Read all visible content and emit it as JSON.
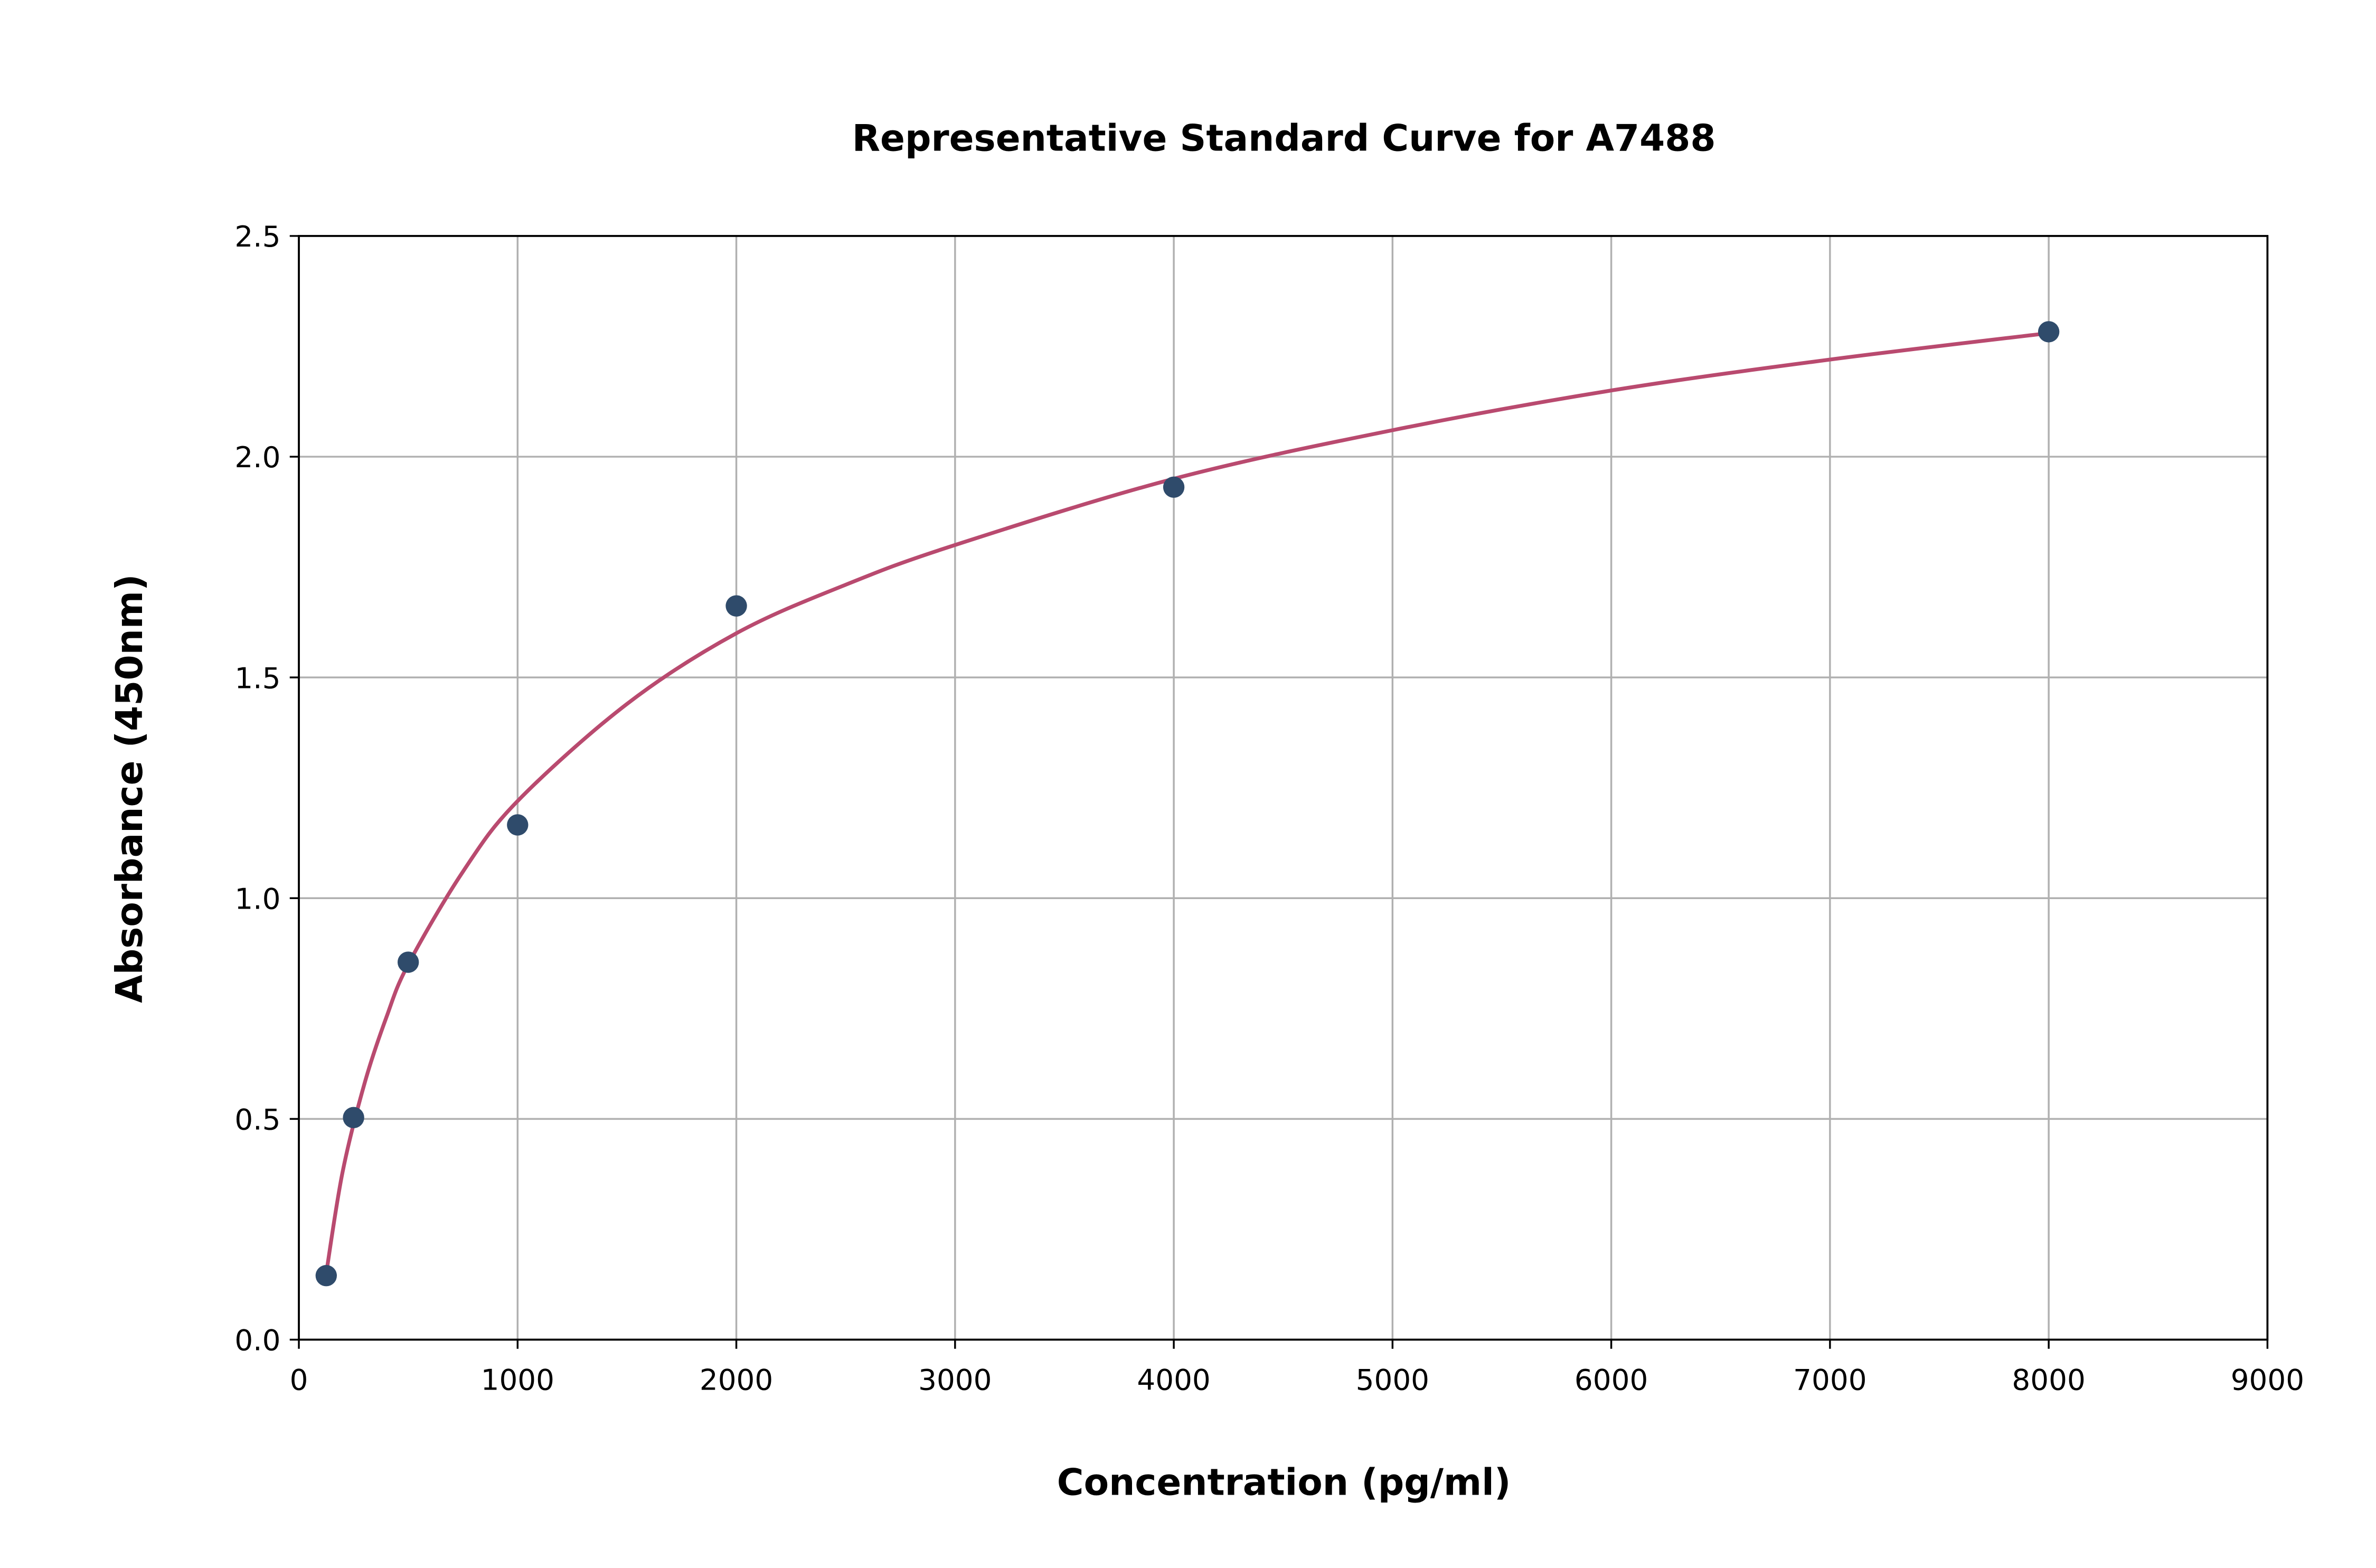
{
  "chart_data": {
    "type": "scatter",
    "title": "Representative Standard Curve for A7488",
    "xlabel": "Concentration (pg/ml)",
    "ylabel": "Absorbance (450nm)",
    "xlim": [
      0,
      9000
    ],
    "ylim": [
      0,
      2.5
    ],
    "xticks": [
      "0",
      "1000",
      "2000",
      "3000",
      "4000",
      "5000",
      "6000",
      "7000",
      "8000",
      "9000"
    ],
    "yticks": [
      "0.0",
      "0.5",
      "1.0",
      "1.5",
      "2.0",
      "2.5"
    ],
    "grid": true,
    "legend": "none",
    "points": {
      "x": [
        125,
        250,
        500,
        1000,
        2000,
        4000,
        8000
      ],
      "y": [
        0.145,
        0.503,
        0.855,
        1.166,
        1.662,
        1.931,
        2.283
      ],
      "color": "#2f4b6b"
    },
    "fit_curve": {
      "x": [
        125,
        200,
        300,
        400,
        500,
        750,
        1000,
        1500,
        2000,
        2500,
        3000,
        4000,
        5000,
        6000,
        7000,
        8000
      ],
      "y": [
        0.15,
        0.38,
        0.58,
        0.73,
        0.85,
        1.06,
        1.22,
        1.44,
        1.6,
        1.71,
        1.8,
        1.95,
        2.06,
        2.15,
        2.22,
        2.28
      ],
      "color": "#b94a6f"
    }
  }
}
